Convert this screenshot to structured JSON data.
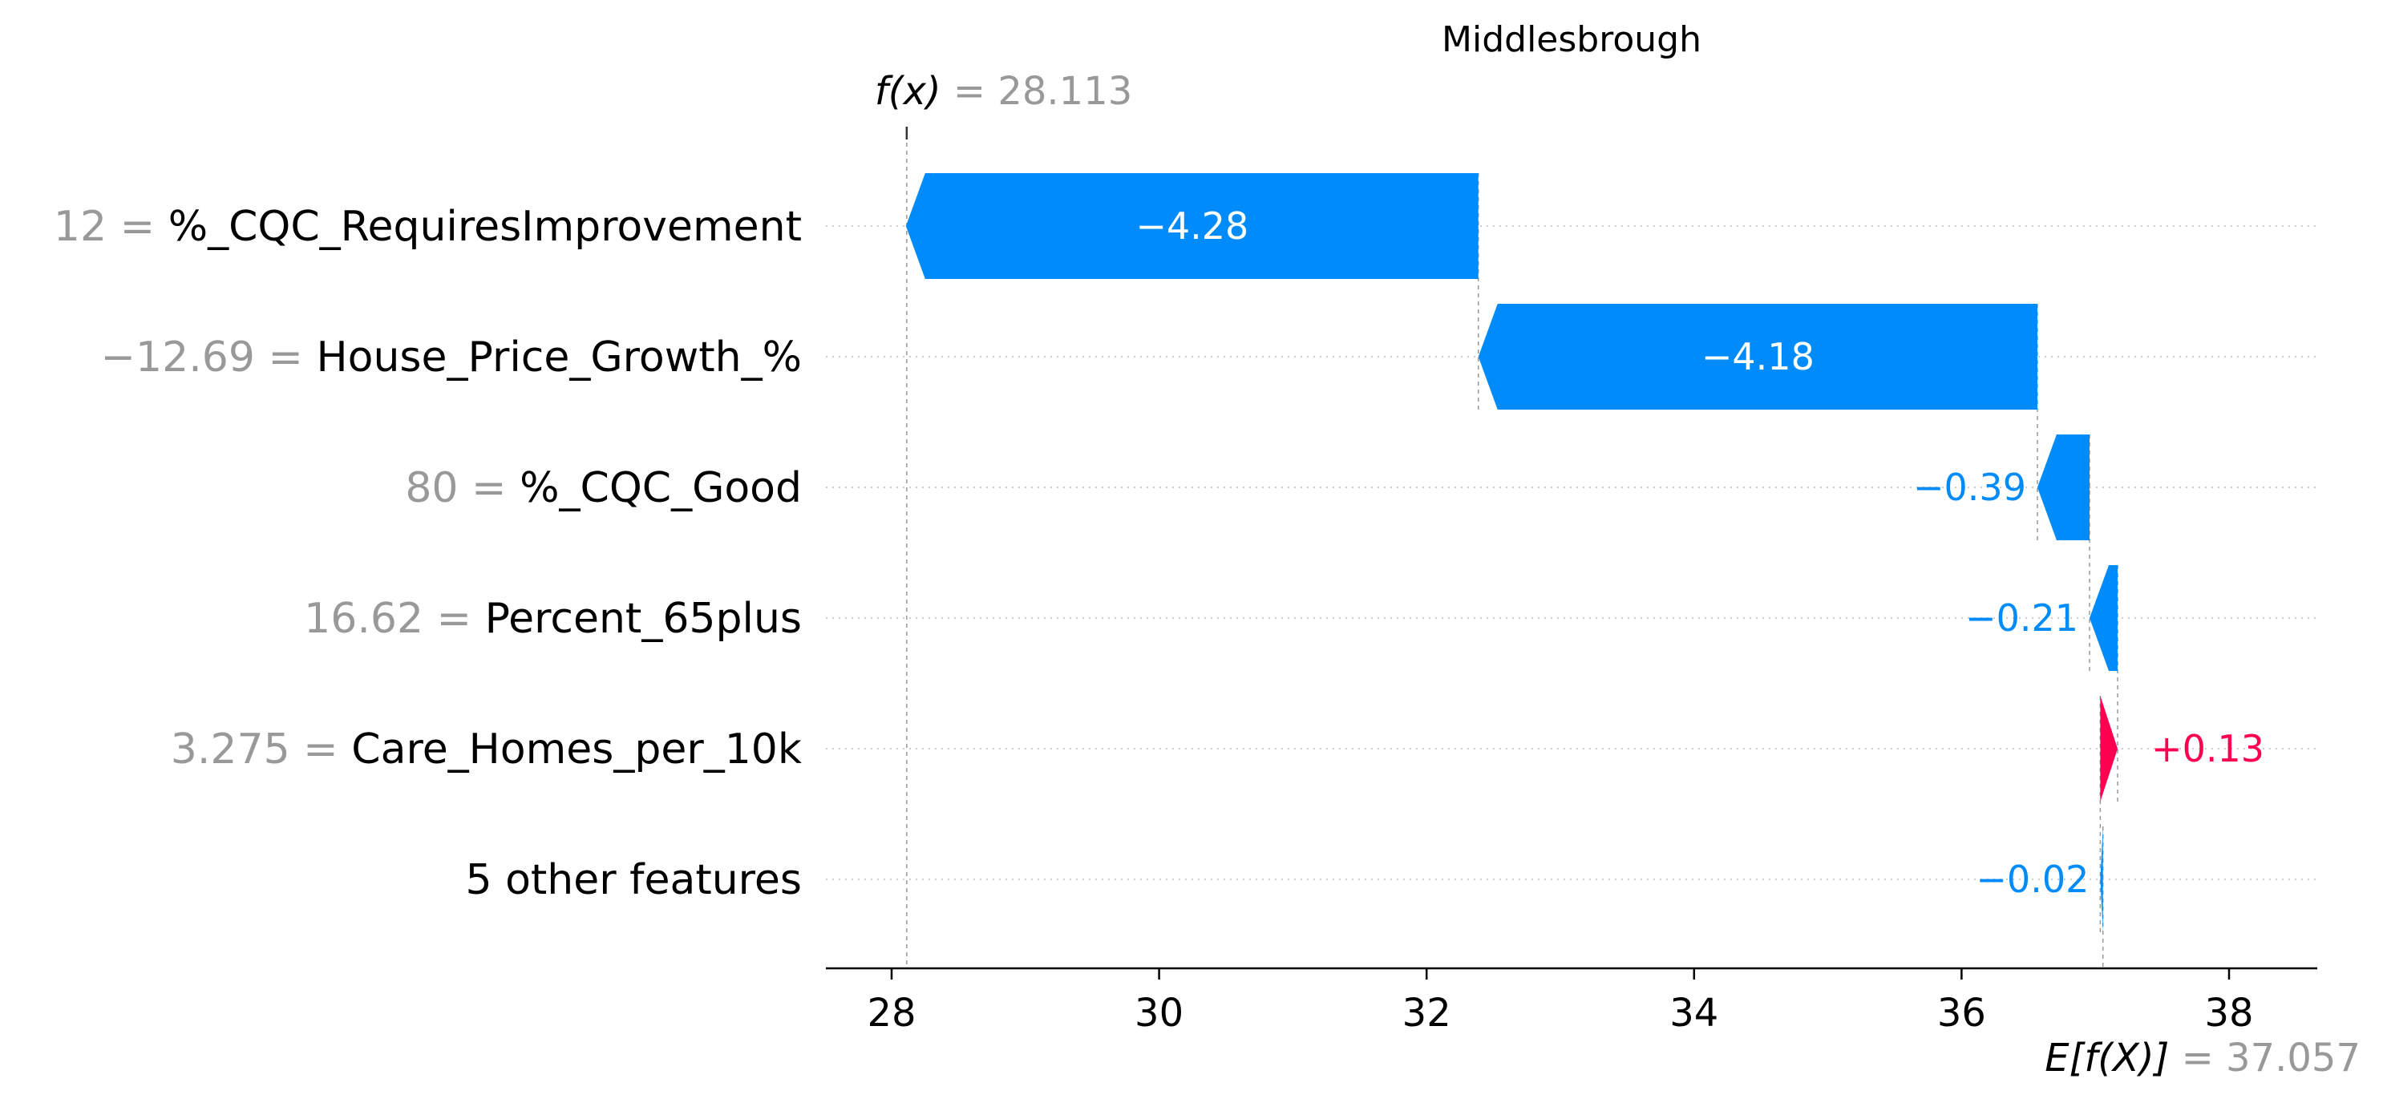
{
  "chart_data": {
    "type": "waterfall",
    "title": "Middlesbrough",
    "base_value": 37.057,
    "base_label": "E[f(X)]",
    "base_value_text": "37.057",
    "output_value": 28.113,
    "output_label": "f(x)",
    "output_value_text": "28.113",
    "xlim": [
      27.5,
      38.7
    ],
    "xticks": [
      28,
      30,
      32,
      34,
      36,
      38
    ],
    "grid": "horizontal dotted row lines",
    "colors": {
      "positive": "#ff0051",
      "negative": "#008bfb",
      "value_text": "#999999",
      "name_text": "#000000"
    },
    "rows": [
      {
        "feature_value": "12",
        "feature": "%_CQC_RequiresImprovement",
        "shap": -4.28,
        "label": "−4.28"
      },
      {
        "feature_value": "−12.69",
        "feature": "House_Price_Growth_%",
        "shap": -4.18,
        "label": "−4.18"
      },
      {
        "feature_value": "80",
        "feature": "%_CQC_Good",
        "shap": -0.39,
        "label": "−0.39"
      },
      {
        "feature_value": "16.62",
        "feature": "Percent_65plus",
        "shap": -0.21,
        "label": "−0.21"
      },
      {
        "feature_value": "3.275",
        "feature": "Care_Homes_per_10k",
        "shap": 0.13,
        "label": "+0.13"
      },
      {
        "feature_value": "",
        "feature": "5 other features",
        "shap": -0.02,
        "label": "−0.02"
      }
    ]
  }
}
